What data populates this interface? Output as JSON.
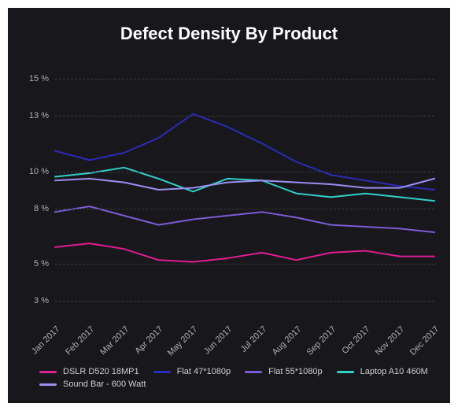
{
  "title": "Defect Density By Product",
  "background_color": "#18171c",
  "grid_color": "#3a3a3e",
  "text_color": "#b0b0b0",
  "title_color": "#ffffff",
  "title_fontsize": 22,
  "label_fontsize": 11,
  "chart": {
    "type": "line",
    "y_axis": {
      "min": 3,
      "max": 15,
      "ticks": [
        3,
        5,
        8,
        10,
        13,
        15
      ],
      "tick_labels": [
        "3 %",
        "5 %",
        "8 %",
        "10 %",
        "13 %",
        "15 %"
      ]
    },
    "x_axis": {
      "labels": [
        "Jan 2017",
        "Feb 2017",
        "Mar 2017",
        "Apr 2017",
        "May 2017",
        "Jun 2017",
        "Jul 2017",
        "Aug 2017",
        "Sep 2017",
        "Oct 2017",
        "Nov 2017",
        "Dec 2017"
      ]
    },
    "line_width": 2,
    "series": [
      {
        "name": "DSLR D520 18MP1",
        "color": "#e11d8f",
        "values": [
          5.9,
          6.1,
          5.8,
          5.2,
          5.1,
          5.3,
          5.6,
          5.2,
          5.6,
          5.7,
          5.4,
          5.4
        ]
      },
      {
        "name": "Flat 47*1080p",
        "color": "#2b2bb5",
        "values": [
          11.1,
          10.6,
          11.0,
          11.8,
          13.1,
          12.4,
          11.5,
          10.5,
          9.8,
          9.5,
          9.2,
          9.0
        ]
      },
      {
        "name": "Flat 55*1080p",
        "color": "#7b5cd6",
        "values": [
          7.8,
          8.1,
          7.6,
          7.1,
          7.4,
          7.6,
          7.8,
          7.5,
          7.1,
          7.0,
          6.9,
          6.7
        ]
      },
      {
        "name": "Laptop A10 460M",
        "color": "#2fd0c8",
        "values": [
          9.7,
          9.9,
          10.2,
          9.6,
          8.9,
          9.6,
          9.5,
          8.8,
          8.6,
          8.8,
          8.6,
          8.4
        ]
      },
      {
        "name": "Sound Bar - 600 Watt",
        "color": "#9c8ef0",
        "values": [
          9.5,
          9.6,
          9.4,
          9.0,
          9.1,
          9.4,
          9.5,
          9.4,
          9.3,
          9.1,
          9.1,
          9.6
        ]
      }
    ]
  }
}
